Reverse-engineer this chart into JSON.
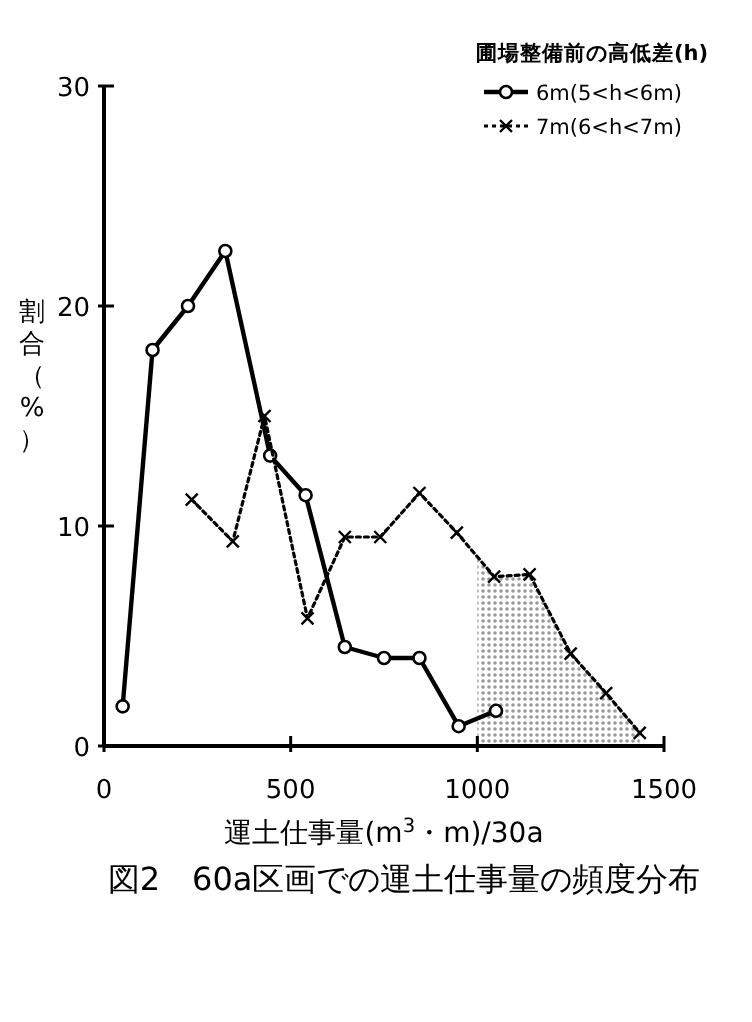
{
  "chart_data": {
    "type": "line",
    "title": "図2　60a区画での運土仕事量の頻度分布",
    "xlabel": "運土仕事量(m$^{3}$・m)/30a",
    "ylabel": "割合（%）",
    "legend_title": "圃場整備前の高低差(h)",
    "xlim": [
      0,
      1500
    ],
    "ylim": [
      0,
      30
    ],
    "xticks": [
      0,
      500,
      1000,
      1500
    ],
    "yticks": [
      0,
      10,
      20,
      30
    ],
    "legend": "top right",
    "series": [
      {
        "name": "6m(5<h<6m)",
        "color": "#000000",
        "marker": "circle",
        "line_style": "solid",
        "x": [
          50,
          130,
          225,
          325,
          445,
          540,
          645,
          750,
          845,
          950,
          1050
        ],
        "values": [
          1.8,
          18.0,
          20.0,
          22.5,
          13.2,
          11.4,
          4.5,
          4.0,
          4.0,
          0.9,
          1.6
        ]
      },
      {
        "name": "7m(6<h<7m)",
        "color": "#000000",
        "marker": "cross",
        "line_style": "dotted",
        "x": [
          235,
          345,
          430,
          545,
          645,
          740,
          845,
          945,
          1045,
          1140,
          1250,
          1345,
          1435
        ],
        "values": [
          11.2,
          9.3,
          15.0,
          5.8,
          9.5,
          9.5,
          11.5,
          9.7,
          7.7,
          7.8,
          4.2,
          2.4,
          0.6
        ]
      },
      {
        "type": "area",
        "color": "#9a9a9a",
        "x": [
          1000,
          1045,
          1140,
          1250,
          1345,
          1435
        ],
        "values": [
          8.5,
          7.7,
          7.8,
          4.2,
          2.4,
          0.6
        ]
      }
    ]
  }
}
